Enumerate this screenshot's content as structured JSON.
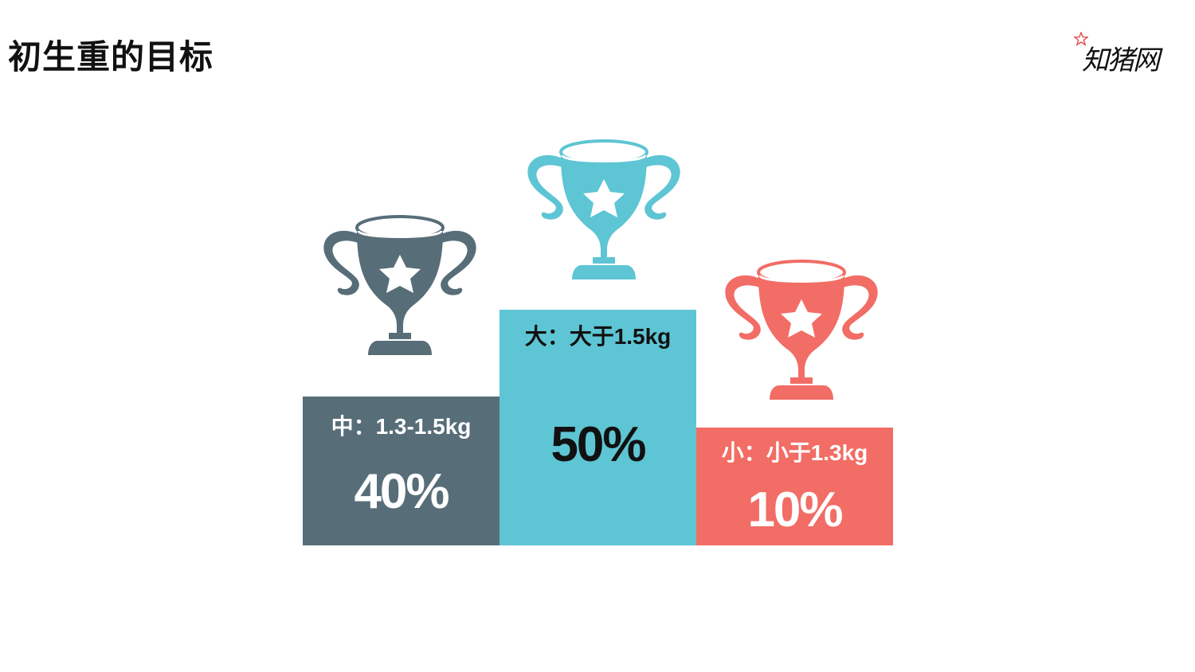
{
  "slide": {
    "title": "初生重的目标",
    "logo_text": "知猪网",
    "logo_icon": "star-icon"
  },
  "podium": [
    {
      "rank": "medium",
      "label": "中：1.3-1.5kg",
      "percent": "40%",
      "color": "#576e79",
      "label_color": "#ffffff"
    },
    {
      "rank": "large",
      "label": "大：大于1.5kg",
      "percent": "50%",
      "color": "#5ec5d4",
      "label_color": "#111111"
    },
    {
      "rank": "small",
      "label": "小：小于1.3kg",
      "percent": "10%",
      "color": "#f26d65",
      "label_color": "#ffffff"
    }
  ],
  "icons": {
    "trophy": "trophy-icon"
  }
}
